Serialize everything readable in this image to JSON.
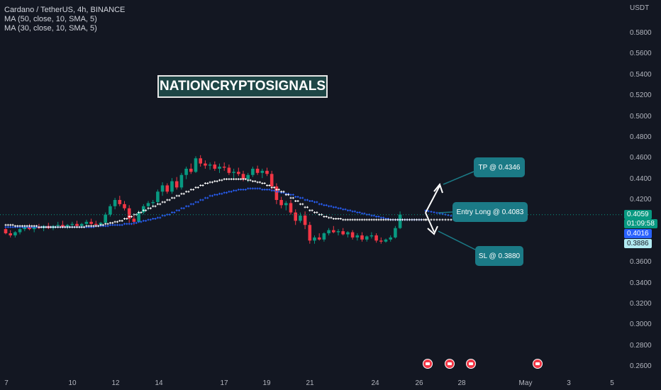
{
  "legend": {
    "symbol_line": "Cardano / TetherUS, 4h, BINANCE",
    "ma1": "MA (50, close, 10, SMA, 5)",
    "ma2": "MA (30, close, 10, SMA, 5)"
  },
  "watermark": "NATIONCRYPTOSIGNALS",
  "price_axis": {
    "currency": "USDT",
    "ticks": [
      "0.5800",
      "0.5600",
      "0.5400",
      "0.5200",
      "0.5000",
      "0.4800",
      "0.4600",
      "0.4400",
      "0.4200",
      "0.3600",
      "0.3400",
      "0.3200",
      "0.3000",
      "0.2800",
      "0.2600"
    ]
  },
  "price_tags": {
    "last_price": "0.4059",
    "countdown": "01:09:58",
    "ma_value": "0.4016",
    "ma2_value": "0.3886",
    "last_color": "#089981",
    "ma_color": "#2962ff",
    "ma2_color": "#b2ebf2"
  },
  "time_axis": {
    "ticks": [
      "7",
      "10",
      "12",
      "14",
      "17",
      "19",
      "21",
      "24",
      "26",
      "28",
      "May",
      "3",
      "5"
    ]
  },
  "callouts": {
    "tp": "TP @ 0.4346",
    "entry": "Entry Long @ 0.4083",
    "sl": "SL @ 0.3880"
  },
  "chart_data": {
    "type": "candlestick",
    "symbol": "Cardano / TetherUS",
    "interval": "4h",
    "exchange": "BINANCE",
    "y_range": [
      0.25,
      0.595
    ],
    "series": [
      {
        "name": "MA (50, close, 10, SMA, 5)",
        "color": "#2962ff"
      },
      {
        "name": "MA (30, close, 10, SMA, 5)",
        "color": "#ffffff"
      }
    ],
    "ohlc": [
      [
        0.392,
        0.395,
        0.387,
        0.388
      ],
      [
        0.388,
        0.391,
        0.384,
        0.386
      ],
      [
        0.386,
        0.39,
        0.384,
        0.389
      ],
      [
        0.389,
        0.393,
        0.387,
        0.392
      ],
      [
        0.392,
        0.396,
        0.39,
        0.394
      ],
      [
        0.394,
        0.397,
        0.391,
        0.392
      ],
      [
        0.392,
        0.395,
        0.389,
        0.394
      ],
      [
        0.394,
        0.397,
        0.392,
        0.393
      ],
      [
        0.393,
        0.396,
        0.39,
        0.395
      ],
      [
        0.395,
        0.398,
        0.392,
        0.393
      ],
      [
        0.393,
        0.396,
        0.391,
        0.395
      ],
      [
        0.395,
        0.399,
        0.393,
        0.396
      ],
      [
        0.396,
        0.4,
        0.393,
        0.394
      ],
      [
        0.394,
        0.397,
        0.392,
        0.396
      ],
      [
        0.396,
        0.399,
        0.394,
        0.397
      ],
      [
        0.397,
        0.4,
        0.394,
        0.395
      ],
      [
        0.395,
        0.398,
        0.393,
        0.397
      ],
      [
        0.397,
        0.401,
        0.395,
        0.399
      ],
      [
        0.399,
        0.402,
        0.396,
        0.397
      ],
      [
        0.397,
        0.4,
        0.394,
        0.396
      ],
      [
        0.396,
        0.399,
        0.394,
        0.398
      ],
      [
        0.398,
        0.408,
        0.397,
        0.406
      ],
      [
        0.406,
        0.416,
        0.404,
        0.414
      ],
      [
        0.414,
        0.422,
        0.411,
        0.42
      ],
      [
        0.42,
        0.424,
        0.414,
        0.416
      ],
      [
        0.416,
        0.419,
        0.41,
        0.412
      ],
      [
        0.412,
        0.415,
        0.398,
        0.402
      ],
      [
        0.402,
        0.405,
        0.396,
        0.399
      ],
      [
        0.399,
        0.41,
        0.398,
        0.408
      ],
      [
        0.408,
        0.416,
        0.406,
        0.414
      ],
      [
        0.414,
        0.419,
        0.41,
        0.417
      ],
      [
        0.417,
        0.42,
        0.413,
        0.418
      ],
      [
        0.418,
        0.43,
        0.416,
        0.428
      ],
      [
        0.428,
        0.437,
        0.424,
        0.434
      ],
      [
        0.434,
        0.436,
        0.426,
        0.428
      ],
      [
        0.428,
        0.441,
        0.426,
        0.438
      ],
      [
        0.438,
        0.442,
        0.43,
        0.432
      ],
      [
        0.432,
        0.446,
        0.43,
        0.444
      ],
      [
        0.444,
        0.452,
        0.44,
        0.45
      ],
      [
        0.45,
        0.455,
        0.445,
        0.447
      ],
      [
        0.447,
        0.462,
        0.446,
        0.46
      ],
      [
        0.46,
        0.463,
        0.452,
        0.455
      ],
      [
        0.455,
        0.458,
        0.45,
        0.453
      ],
      [
        0.453,
        0.456,
        0.449,
        0.454
      ],
      [
        0.454,
        0.457,
        0.448,
        0.45
      ],
      [
        0.45,
        0.455,
        0.446,
        0.452
      ],
      [
        0.452,
        0.456,
        0.448,
        0.451
      ],
      [
        0.451,
        0.454,
        0.444,
        0.446
      ],
      [
        0.446,
        0.45,
        0.441,
        0.447
      ],
      [
        0.447,
        0.451,
        0.443,
        0.445
      ],
      [
        0.445,
        0.448,
        0.438,
        0.44
      ],
      [
        0.44,
        0.446,
        0.437,
        0.444
      ],
      [
        0.444,
        0.452,
        0.442,
        0.45
      ],
      [
        0.45,
        0.453,
        0.444,
        0.446
      ],
      [
        0.446,
        0.45,
        0.441,
        0.448
      ],
      [
        0.448,
        0.451,
        0.443,
        0.445
      ],
      [
        0.445,
        0.448,
        0.43,
        0.433
      ],
      [
        0.433,
        0.436,
        0.416,
        0.42
      ],
      [
        0.42,
        0.423,
        0.412,
        0.415
      ],
      [
        0.415,
        0.419,
        0.41,
        0.417
      ],
      [
        0.417,
        0.42,
        0.406,
        0.408
      ],
      [
        0.408,
        0.411,
        0.396,
        0.4
      ],
      [
        0.4,
        0.408,
        0.398,
        0.405
      ],
      [
        0.405,
        0.409,
        0.392,
        0.396
      ],
      [
        0.396,
        0.399,
        0.378,
        0.381
      ],
      [
        0.381,
        0.386,
        0.378,
        0.384
      ],
      [
        0.384,
        0.388,
        0.381,
        0.382
      ],
      [
        0.382,
        0.389,
        0.38,
        0.388
      ],
      [
        0.388,
        0.393,
        0.386,
        0.391
      ],
      [
        0.391,
        0.395,
        0.388,
        0.389
      ],
      [
        0.389,
        0.392,
        0.386,
        0.39
      ],
      [
        0.39,
        0.393,
        0.386,
        0.387
      ],
      [
        0.387,
        0.39,
        0.384,
        0.389
      ],
      [
        0.389,
        0.391,
        0.382,
        0.384
      ],
      [
        0.384,
        0.388,
        0.381,
        0.386
      ],
      [
        0.386,
        0.389,
        0.38,
        0.382
      ],
      [
        0.382,
        0.386,
        0.38,
        0.385
      ],
      [
        0.385,
        0.389,
        0.383,
        0.386
      ],
      [
        0.386,
        0.388,
        0.379,
        0.381
      ],
      [
        0.381,
        0.384,
        0.378,
        0.38
      ],
      [
        0.38,
        0.383,
        0.379,
        0.382
      ],
      [
        0.382,
        0.386,
        0.38,
        0.384
      ],
      [
        0.384,
        0.395,
        0.383,
        0.393
      ],
      [
        0.393,
        0.409,
        0.392,
        0.406
      ]
    ],
    "ma_white": [
      0.396,
      0.396,
      0.395,
      0.395,
      0.395,
      0.395,
      0.395,
      0.394,
      0.394,
      0.394,
      0.394,
      0.394,
      0.394,
      0.394,
      0.394,
      0.394,
      0.394,
      0.395,
      0.395,
      0.395,
      0.396,
      0.397,
      0.398,
      0.399,
      0.4,
      0.402,
      0.404,
      0.406,
      0.408,
      0.41,
      0.412,
      0.414,
      0.416,
      0.418,
      0.42,
      0.422,
      0.424,
      0.426,
      0.428,
      0.43,
      0.432,
      0.434,
      0.436,
      0.437,
      0.438,
      0.439,
      0.44,
      0.44,
      0.44,
      0.44,
      0.44,
      0.439,
      0.438,
      0.437,
      0.436,
      0.434,
      0.432,
      0.43,
      0.428,
      0.425,
      0.422,
      0.419,
      0.416,
      0.413,
      0.41,
      0.408,
      0.406,
      0.404,
      0.403,
      0.402,
      0.402,
      0.401,
      0.401,
      0.401,
      0.401,
      0.401,
      0.401,
      0.401,
      0.401,
      0.401,
      0.401,
      0.401,
      0.401,
      0.401,
      0.401,
      0.401,
      0.401,
      0.401,
      0.401
    ],
    "ma_blue": [
      0.394,
      0.394,
      0.394,
      0.394,
      0.394,
      0.394,
      0.394,
      0.394,
      0.394,
      0.394,
      0.394,
      0.394,
      0.394,
      0.394,
      0.394,
      0.394,
      0.394,
      0.394,
      0.394,
      0.395,
      0.395,
      0.395,
      0.396,
      0.396,
      0.396,
      0.397,
      0.397,
      0.398,
      0.399,
      0.4,
      0.401,
      0.402,
      0.403,
      0.405,
      0.406,
      0.408,
      0.41,
      0.412,
      0.414,
      0.416,
      0.418,
      0.42,
      0.422,
      0.424,
      0.425,
      0.426,
      0.427,
      0.428,
      0.429,
      0.43,
      0.43,
      0.431,
      0.431,
      0.431,
      0.43,
      0.43,
      0.429,
      0.428,
      0.427,
      0.426,
      0.425,
      0.423,
      0.422,
      0.42,
      0.419,
      0.418,
      0.416,
      0.415,
      0.414,
      0.413,
      0.412,
      0.411,
      0.41,
      0.409,
      0.408,
      0.407,
      0.406,
      0.405,
      0.404,
      0.403,
      0.402,
      0.401,
      0.401,
      0.401,
      0.401,
      0.401,
      0.401,
      0.401
    ]
  }
}
